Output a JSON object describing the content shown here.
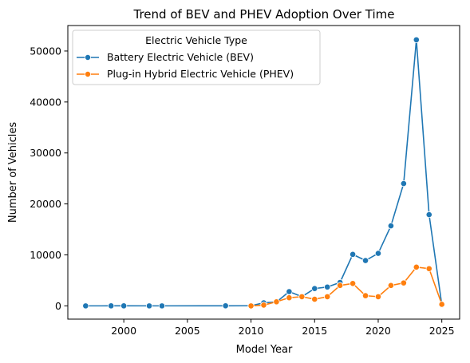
{
  "chart_data": {
    "type": "line",
    "title": "Trend of BEV and PHEV Adoption Over Time",
    "xlabel": "Model Year",
    "ylabel": "Number of Vehicles",
    "xlim": [
      1995.6,
      2026.4
    ],
    "ylim": [
      -2600,
      55000
    ],
    "xticks": [
      2000,
      2005,
      2010,
      2015,
      2020,
      2025
    ],
    "yticks": [
      0,
      10000,
      20000,
      30000,
      40000,
      50000
    ],
    "grid": false,
    "legend": {
      "title": "Electric Vehicle Type",
      "position": "top-left"
    },
    "series": [
      {
        "name": "Battery Electric Vehicle (BEV)",
        "color": "#1f77b4",
        "marker": "circle",
        "x": [
          1997,
          1999,
          2000,
          2002,
          2003,
          2008,
          2010,
          2011,
          2012,
          2013,
          2014,
          2015,
          2016,
          2017,
          2018,
          2019,
          2020,
          2021,
          2022,
          2023,
          2024,
          2025
        ],
        "y": [
          1,
          5,
          5,
          2,
          1,
          19,
          23,
          600,
          750,
          2800,
          1800,
          3400,
          3700,
          4600,
          10100,
          8900,
          10300,
          15700,
          24000,
          52200,
          17900,
          200
        ]
      },
      {
        "name": "Plug-in Hybrid Electric Vehicle (PHEV)",
        "color": "#ff7f0e",
        "marker": "circle",
        "x": [
          2010,
          2011,
          2012,
          2013,
          2014,
          2015,
          2016,
          2017,
          2018,
          2019,
          2020,
          2021,
          2022,
          2023,
          2024,
          2025
        ],
        "y": [
          0,
          150,
          800,
          1600,
          1800,
          1300,
          1800,
          4000,
          4400,
          2000,
          1800,
          4000,
          4500,
          7600,
          7300,
          300
        ]
      }
    ]
  }
}
